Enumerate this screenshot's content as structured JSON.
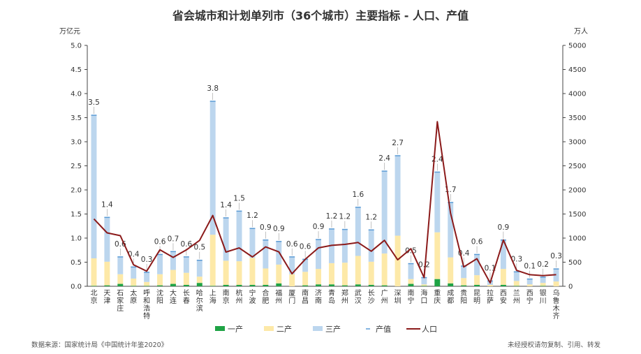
{
  "chart_data": {
    "type": "bar",
    "title": "省会城市和计划单列市（36个城市）主要指标 - 人口、产值",
    "ylabel_left": "万亿元",
    "ylabel_right": "万人",
    "ylim_left": [
      0,
      5.0
    ],
    "ylim_right": [
      0,
      5000
    ],
    "yticks_left": [
      "0.0",
      "0.5",
      "1.0",
      "1.5",
      "2.0",
      "2.5",
      "3.0",
      "3.5",
      "4.0",
      "4.5",
      "5.0"
    ],
    "yticks_right": [
      "0",
      "500",
      "1000",
      "1500",
      "2000",
      "2500",
      "3000",
      "3500",
      "4000",
      "4500",
      "5000"
    ],
    "categories": [
      "北京",
      "天津",
      "石家庄",
      "太原",
      "呼和浩特",
      "沈阳",
      "大连",
      "长春",
      "哈尔滨",
      "上海",
      "南京",
      "杭州",
      "宁波",
      "合肥",
      "福州",
      "厦门",
      "南昌",
      "济南",
      "青岛",
      "郑州",
      "武汉",
      "长沙",
      "广州",
      "深圳",
      "南宁",
      "海口",
      "重庆",
      "成都",
      "贵阳",
      "昆明",
      "拉萨",
      "西安",
      "兰州",
      "西宁",
      "银川",
      "乌鲁木齐"
    ],
    "series": [
      {
        "name": "一产",
        "kind": "stacked-bar",
        "color": "#1fa345",
        "values": [
          0.01,
          0.02,
          0.05,
          0.01,
          0.01,
          0.02,
          0.05,
          0.03,
          0.07,
          0.01,
          0.03,
          0.03,
          0.03,
          0.03,
          0.06,
          0.0,
          0.02,
          0.04,
          0.04,
          0.02,
          0.04,
          0.03,
          0.02,
          0.0,
          0.05,
          0.01,
          0.15,
          0.06,
          0.02,
          0.03,
          0.0,
          0.03,
          0.01,
          0.0,
          0.01,
          0.0
        ]
      },
      {
        "name": "二产",
        "kind": "stacked-bar",
        "color": "#fde9a8",
        "values": [
          0.57,
          0.49,
          0.2,
          0.15,
          0.08,
          0.23,
          0.29,
          0.25,
          0.13,
          1.06,
          0.5,
          0.49,
          0.56,
          0.34,
          0.39,
          0.25,
          0.28,
          0.32,
          0.44,
          0.47,
          0.59,
          0.48,
          0.66,
          1.05,
          0.1,
          0.03,
          0.97,
          0.54,
          0.15,
          0.2,
          0.03,
          0.33,
          0.1,
          0.04,
          0.06,
          0.1
        ]
      },
      {
        "name": "三产",
        "kind": "stacked-bar",
        "color": "#bcd6ee",
        "values": [
          2.97,
          0.92,
          0.36,
          0.24,
          0.2,
          0.41,
          0.38,
          0.33,
          0.34,
          2.77,
          0.89,
          1.04,
          0.61,
          0.59,
          0.48,
          0.36,
          0.26,
          0.61,
          0.71,
          0.69,
          1.01,
          0.66,
          1.71,
          1.66,
          0.32,
          0.14,
          1.25,
          1.14,
          0.25,
          0.43,
          0.08,
          0.6,
          0.19,
          0.11,
          0.12,
          0.26
        ]
      },
      {
        "name": "产值",
        "kind": "label",
        "values": [
          "3.5",
          "1.4",
          "0.6",
          "0.4",
          "0.3",
          "0.6",
          "0.7",
          "0.6",
          "0.5",
          "3.8",
          "1.4",
          "1.5",
          "1.2",
          "0.9",
          "0.9",
          "0.6",
          "0.6",
          "0.9",
          "1.2",
          "1.2",
          "1.6",
          "1.2",
          "2.4",
          "2.7",
          "0.5",
          "0.2",
          "2.4",
          "1.7",
          "0.4",
          "0.6",
          "0.1",
          "0.9",
          "0.3",
          "0.1",
          "0.2",
          "0.3"
        ]
      },
      {
        "name": "人口",
        "kind": "line",
        "axis": "right",
        "color": "#8b1a1a",
        "values": [
          1397,
          1108,
          1051,
          446,
          313,
          756,
          600,
          755,
          952,
          1469,
          710,
          795,
          608,
          818,
          715,
          260,
          560,
          797,
          850,
          870,
          908,
          727,
          953,
          550,
          780,
          180,
          3416,
          1520,
          401,
          572,
          70,
          960,
          330,
          240,
          220,
          240
        ]
      }
    ],
    "legend": [
      "一产",
      "二产",
      "三产",
      "产值",
      "人口"
    ],
    "legend_placement": "bottom",
    "grid": false
  },
  "footer": {
    "source": "数据来源：国家统计局《中国统计年鉴2020》",
    "notice": "未经授权请勿复制、引用、转发"
  }
}
